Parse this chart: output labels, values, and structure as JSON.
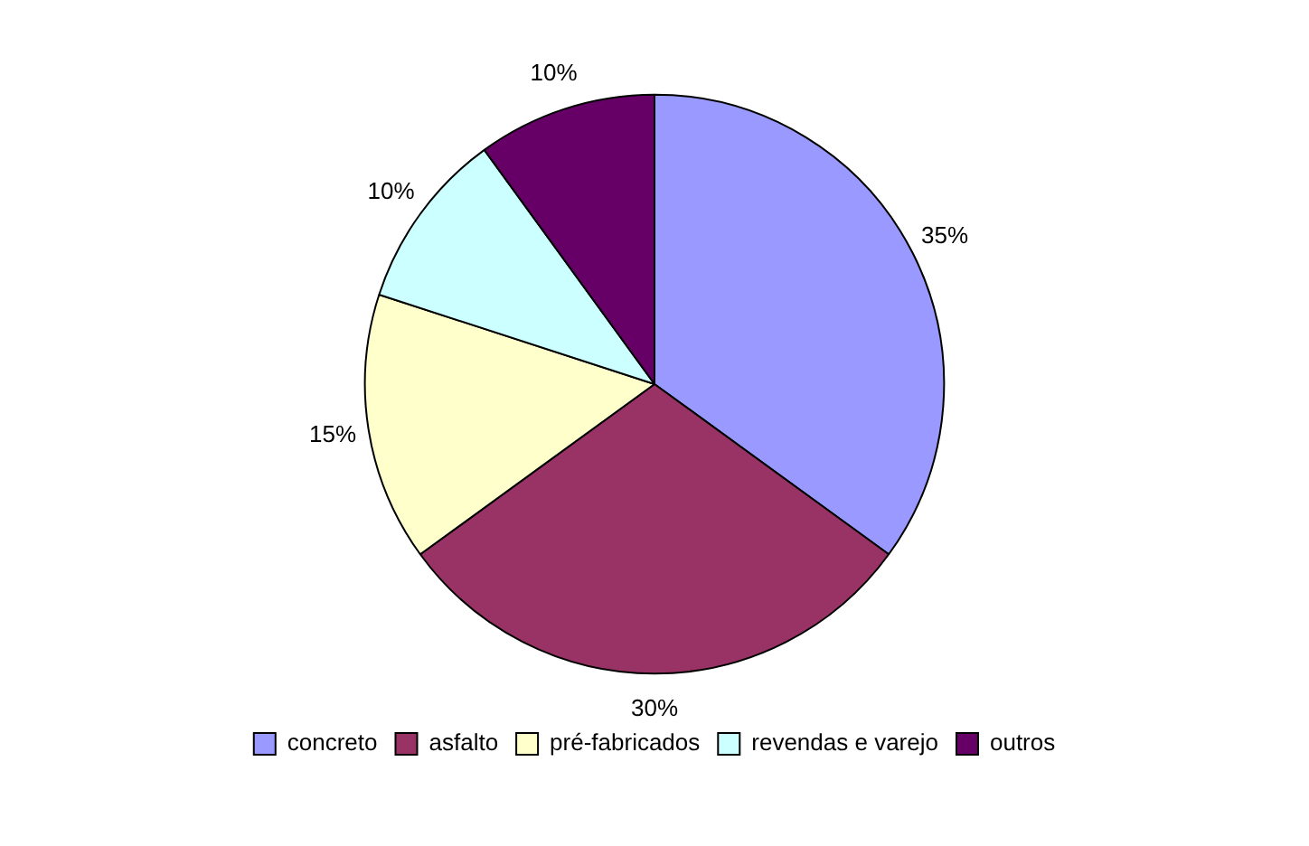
{
  "chart_data": {
    "type": "pie",
    "categories": [
      "concreto",
      "asfalto",
      "pré-fabricados",
      "revendas e varejo",
      "outros"
    ],
    "values": [
      35,
      30,
      15,
      10,
      10
    ],
    "value_labels": [
      "35%",
      "30%",
      "15%",
      "10%",
      "10%"
    ],
    "colors": [
      "#9999ff",
      "#993366",
      "#ffffcc",
      "#ccffff",
      "#660066"
    ],
    "legend": "bottom"
  }
}
